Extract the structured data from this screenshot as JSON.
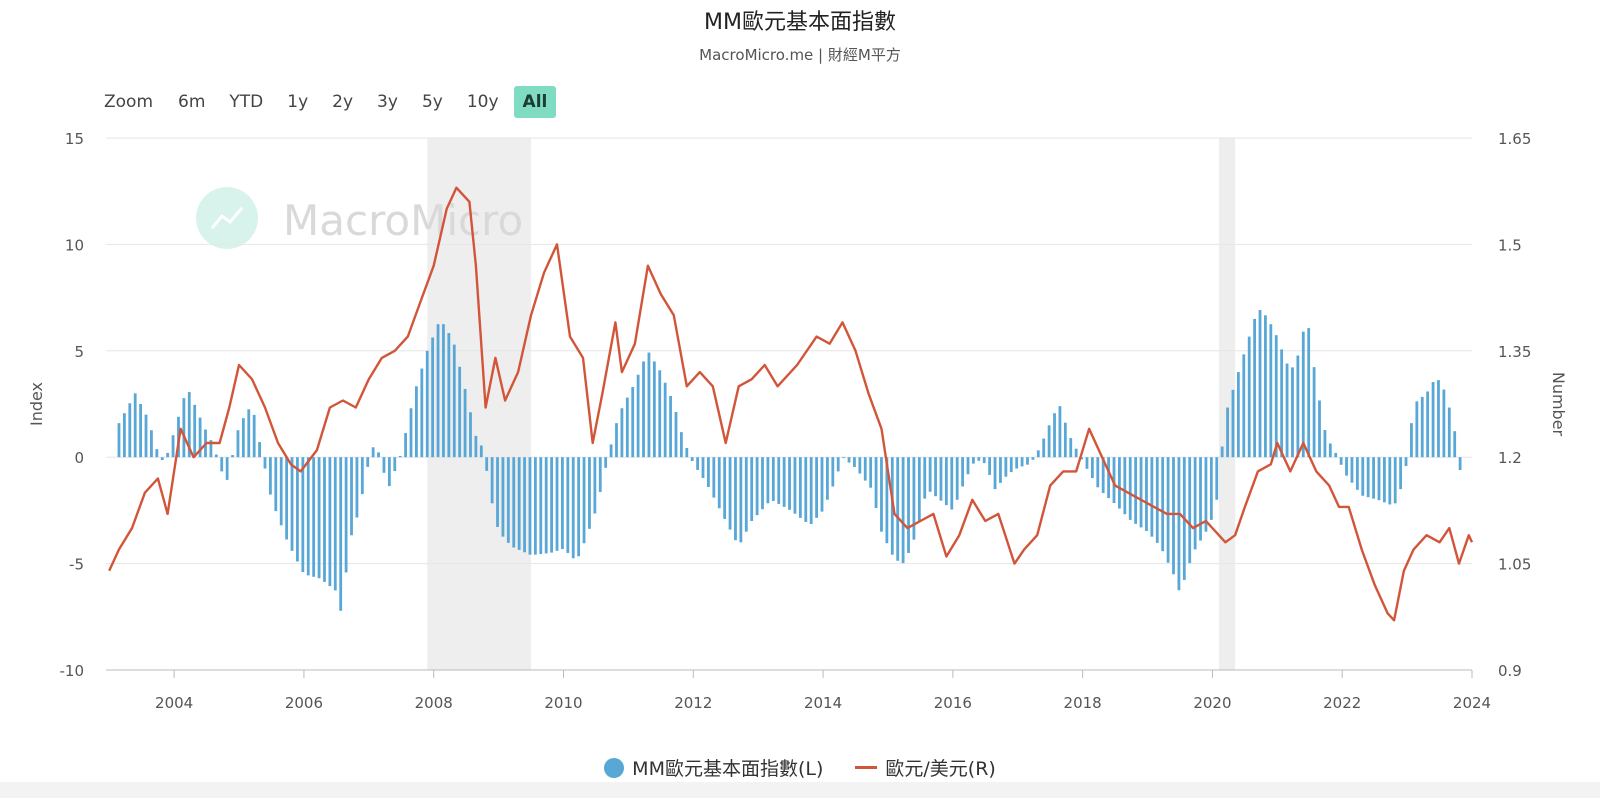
{
  "title": "MM歐元基本面指數",
  "subtitle": "MacroMicro.me | 財經M平方",
  "watermark": "MacroMicro",
  "range_selector": {
    "zoom_label": "Zoom",
    "buttons": [
      "6m",
      "YTD",
      "1y",
      "2y",
      "3y",
      "5y",
      "10y",
      "All"
    ],
    "active": "All"
  },
  "legend": [
    {
      "label": "MM歐元基本面指數(L)",
      "marker": "circle",
      "color": "#58a7d6"
    },
    {
      "label": "歐元/美元(R)",
      "marker": "line",
      "color": "#d2553a"
    }
  ],
  "colors": {
    "bars": "#58a7d6",
    "line": "#d2553a",
    "recession": "#eeeeee",
    "grid": "#e6e6e6",
    "active_button": "#7fdcc3"
  },
  "chart_data": {
    "type": "bar+line",
    "x_axis": {
      "type": "time",
      "range": [
        2002.95,
        2024.0
      ],
      "ticks": [
        "2004",
        "2006",
        "2008",
        "2010",
        "2012",
        "2014",
        "2016",
        "2018",
        "2020",
        "2022",
        "2024"
      ]
    },
    "y_left": {
      "label": "Index",
      "range": [
        -10,
        15
      ],
      "ticks": [
        "-10",
        "-5",
        "0",
        "5",
        "10",
        "15"
      ]
    },
    "y_right": {
      "label": "Number",
      "range": [
        0.9,
        1.65
      ],
      "ticks": [
        "0.9",
        "1.05",
        "1.2",
        "1.35",
        "1.5",
        "1.65"
      ]
    },
    "recession_shading": [
      [
        2007.9,
        2009.5
      ],
      [
        2020.1,
        2020.35
      ]
    ],
    "series": [
      {
        "name": "MM歐元基本面指數(L)",
        "axis": "left",
        "type": "bar",
        "interpolated_monthly": true,
        "points": [
          [
            2003.15,
            1.6
          ],
          [
            2003.4,
            3.0
          ],
          [
            2003.6,
            1.8
          ],
          [
            2003.75,
            0.2
          ],
          [
            2003.85,
            -0.3
          ],
          [
            2004.0,
            1.2
          ],
          [
            2004.2,
            3.3
          ],
          [
            2004.45,
            1.5
          ],
          [
            2004.6,
            0.6
          ],
          [
            2004.8,
            -1.3
          ],
          [
            2005.0,
            1.5
          ],
          [
            2005.2,
            2.5
          ],
          [
            2005.35,
            0.2
          ],
          [
            2005.5,
            -2.0
          ],
          [
            2005.75,
            -4.0
          ],
          [
            2006.0,
            -5.5
          ],
          [
            2006.25,
            -5.7
          ],
          [
            2006.5,
            -6.3
          ],
          [
            2006.58,
            -7.4
          ],
          [
            2006.7,
            -4.0
          ],
          [
            2006.85,
            -2.5
          ],
          [
            2007.0,
            -0.2
          ],
          [
            2007.1,
            0.8
          ],
          [
            2007.3,
            -1.5
          ],
          [
            2007.5,
            0.2
          ],
          [
            2007.7,
            3.0
          ],
          [
            2007.9,
            5.0
          ],
          [
            2008.1,
            6.5
          ],
          [
            2008.3,
            5.5
          ],
          [
            2008.5,
            3.0
          ],
          [
            2008.65,
            1.0
          ],
          [
            2008.78,
            0.3
          ],
          [
            2008.85,
            -1.5
          ],
          [
            2009.0,
            -3.5
          ],
          [
            2009.2,
            -4.2
          ],
          [
            2009.5,
            -4.6
          ],
          [
            2009.8,
            -4.5
          ],
          [
            2010.0,
            -4.3
          ],
          [
            2010.2,
            -4.9
          ],
          [
            2010.35,
            -3.8
          ],
          [
            2010.5,
            -2.5
          ],
          [
            2010.6,
            -1.2
          ],
          [
            2010.7,
            0.2
          ],
          [
            2010.85,
            2.0
          ],
          [
            2011.1,
            3.5
          ],
          [
            2011.3,
            5.0
          ],
          [
            2011.5,
            4.0
          ],
          [
            2011.7,
            2.5
          ],
          [
            2011.85,
            0.8
          ],
          [
            2012.0,
            -0.3
          ],
          [
            2012.2,
            -1.2
          ],
          [
            2012.5,
            -3.0
          ],
          [
            2012.7,
            -4.2
          ],
          [
            2012.9,
            -3.0
          ],
          [
            2013.2,
            -2.0
          ],
          [
            2013.5,
            -2.5
          ],
          [
            2013.8,
            -3.2
          ],
          [
            2014.0,
            -2.5
          ],
          [
            2014.2,
            -1.0
          ],
          [
            2014.3,
            0.0
          ],
          [
            2014.5,
            -0.5
          ],
          [
            2014.75,
            -1.5
          ],
          [
            2014.9,
            -3.5
          ],
          [
            2015.1,
            -4.8
          ],
          [
            2015.25,
            -5.0
          ],
          [
            2015.45,
            -3.5
          ],
          [
            2015.6,
            -1.5
          ],
          [
            2015.8,
            -2.0
          ],
          [
            2016.0,
            -2.5
          ],
          [
            2016.2,
            -1.0
          ],
          [
            2016.35,
            -0.1
          ],
          [
            2016.5,
            -0.3
          ],
          [
            2016.65,
            -1.5
          ],
          [
            2016.85,
            -0.8
          ],
          [
            2017.0,
            -0.5
          ],
          [
            2017.2,
            -0.3
          ],
          [
            2017.35,
            0.5
          ],
          [
            2017.55,
            2.0
          ],
          [
            2017.65,
            2.4
          ],
          [
            2017.8,
            1.0
          ],
          [
            2018.0,
            -0.2
          ],
          [
            2018.25,
            -1.5
          ],
          [
            2018.5,
            -2.2
          ],
          [
            2018.75,
            -3.0
          ],
          [
            2019.0,
            -3.5
          ],
          [
            2019.2,
            -4.2
          ],
          [
            2019.4,
            -5.5
          ],
          [
            2019.5,
            -6.4
          ],
          [
            2019.7,
            -4.5
          ],
          [
            2019.9,
            -3.5
          ],
          [
            2020.05,
            -2.5
          ],
          [
            2020.2,
            2.0
          ],
          [
            2020.4,
            4.0
          ],
          [
            2020.65,
            6.5
          ],
          [
            2020.75,
            7.0
          ],
          [
            2020.95,
            6.0
          ],
          [
            2021.2,
            4.0
          ],
          [
            2021.35,
            5.0
          ],
          [
            2021.45,
            6.8
          ],
          [
            2021.6,
            3.5
          ],
          [
            2021.75,
            1.0
          ],
          [
            2021.9,
            0.2
          ],
          [
            2022.05,
            -0.8
          ],
          [
            2022.3,
            -1.8
          ],
          [
            2022.55,
            -2.0
          ],
          [
            2022.8,
            -2.3
          ],
          [
            2022.9,
            -1.5
          ],
          [
            2023.0,
            -0.2
          ],
          [
            2023.1,
            2.5
          ],
          [
            2023.3,
            3.0
          ],
          [
            2023.45,
            3.8
          ],
          [
            2023.6,
            3.0
          ],
          [
            2023.75,
            1.0
          ],
          [
            2023.8,
            -0.5
          ],
          [
            2023.88,
            -1.0
          ]
        ]
      },
      {
        "name": "歐元/美元(R)",
        "axis": "right",
        "type": "line",
        "points": [
          [
            2003.0,
            1.04
          ],
          [
            2003.15,
            1.07
          ],
          [
            2003.35,
            1.1
          ],
          [
            2003.55,
            1.15
          ],
          [
            2003.75,
            1.17
          ],
          [
            2003.9,
            1.12
          ],
          [
            2004.1,
            1.24
          ],
          [
            2004.3,
            1.2
          ],
          [
            2004.5,
            1.22
          ],
          [
            2004.7,
            1.22
          ],
          [
            2004.85,
            1.27
          ],
          [
            2005.0,
            1.33
          ],
          [
            2005.2,
            1.31
          ],
          [
            2005.4,
            1.27
          ],
          [
            2005.6,
            1.22
          ],
          [
            2005.8,
            1.19
          ],
          [
            2005.95,
            1.18
          ],
          [
            2006.2,
            1.21
          ],
          [
            2006.4,
            1.27
          ],
          [
            2006.6,
            1.28
          ],
          [
            2006.8,
            1.27
          ],
          [
            2007.0,
            1.31
          ],
          [
            2007.2,
            1.34
          ],
          [
            2007.4,
            1.35
          ],
          [
            2007.6,
            1.37
          ],
          [
            2007.8,
            1.42
          ],
          [
            2008.0,
            1.47
          ],
          [
            2008.2,
            1.55
          ],
          [
            2008.35,
            1.58
          ],
          [
            2008.55,
            1.56
          ],
          [
            2008.65,
            1.47
          ],
          [
            2008.8,
            1.27
          ],
          [
            2008.95,
            1.34
          ],
          [
            2009.1,
            1.28
          ],
          [
            2009.3,
            1.32
          ],
          [
            2009.5,
            1.4
          ],
          [
            2009.7,
            1.46
          ],
          [
            2009.9,
            1.5
          ],
          [
            2010.1,
            1.37
          ],
          [
            2010.3,
            1.34
          ],
          [
            2010.45,
            1.22
          ],
          [
            2010.6,
            1.29
          ],
          [
            2010.8,
            1.39
          ],
          [
            2010.9,
            1.32
          ],
          [
            2011.1,
            1.36
          ],
          [
            2011.3,
            1.47
          ],
          [
            2011.5,
            1.43
          ],
          [
            2011.7,
            1.4
          ],
          [
            2011.9,
            1.3
          ],
          [
            2012.1,
            1.32
          ],
          [
            2012.3,
            1.3
          ],
          [
            2012.5,
            1.22
          ],
          [
            2012.7,
            1.3
          ],
          [
            2012.9,
            1.31
          ],
          [
            2013.1,
            1.33
          ],
          [
            2013.3,
            1.3
          ],
          [
            2013.6,
            1.33
          ],
          [
            2013.9,
            1.37
          ],
          [
            2014.1,
            1.36
          ],
          [
            2014.3,
            1.39
          ],
          [
            2014.5,
            1.35
          ],
          [
            2014.7,
            1.29
          ],
          [
            2014.9,
            1.24
          ],
          [
            2015.1,
            1.12
          ],
          [
            2015.3,
            1.1
          ],
          [
            2015.5,
            1.11
          ],
          [
            2015.7,
            1.12
          ],
          [
            2015.9,
            1.06
          ],
          [
            2016.1,
            1.09
          ],
          [
            2016.3,
            1.14
          ],
          [
            2016.5,
            1.11
          ],
          [
            2016.7,
            1.12
          ],
          [
            2016.95,
            1.05
          ],
          [
            2017.1,
            1.07
          ],
          [
            2017.3,
            1.09
          ],
          [
            2017.5,
            1.16
          ],
          [
            2017.7,
            1.18
          ],
          [
            2017.9,
            1.18
          ],
          [
            2018.1,
            1.24
          ],
          [
            2018.3,
            1.2
          ],
          [
            2018.5,
            1.16
          ],
          [
            2018.7,
            1.15
          ],
          [
            2018.9,
            1.14
          ],
          [
            2019.1,
            1.13
          ],
          [
            2019.3,
            1.12
          ],
          [
            2019.5,
            1.12
          ],
          [
            2019.7,
            1.1
          ],
          [
            2019.9,
            1.11
          ],
          [
            2020.1,
            1.09
          ],
          [
            2020.2,
            1.08
          ],
          [
            2020.35,
            1.09
          ],
          [
            2020.5,
            1.13
          ],
          [
            2020.7,
            1.18
          ],
          [
            2020.9,
            1.19
          ],
          [
            2021.0,
            1.22
          ],
          [
            2021.2,
            1.18
          ],
          [
            2021.4,
            1.22
          ],
          [
            2021.6,
            1.18
          ],
          [
            2021.8,
            1.16
          ],
          [
            2021.95,
            1.13
          ],
          [
            2022.1,
            1.13
          ],
          [
            2022.3,
            1.07
          ],
          [
            2022.5,
            1.02
          ],
          [
            2022.7,
            0.98
          ],
          [
            2022.8,
            0.97
          ],
          [
            2022.95,
            1.04
          ],
          [
            2023.1,
            1.07
          ],
          [
            2023.3,
            1.09
          ],
          [
            2023.5,
            1.08
          ],
          [
            2023.65,
            1.1
          ],
          [
            2023.8,
            1.05
          ],
          [
            2023.95,
            1.09
          ],
          [
            2024.0,
            1.08
          ]
        ]
      }
    ]
  }
}
